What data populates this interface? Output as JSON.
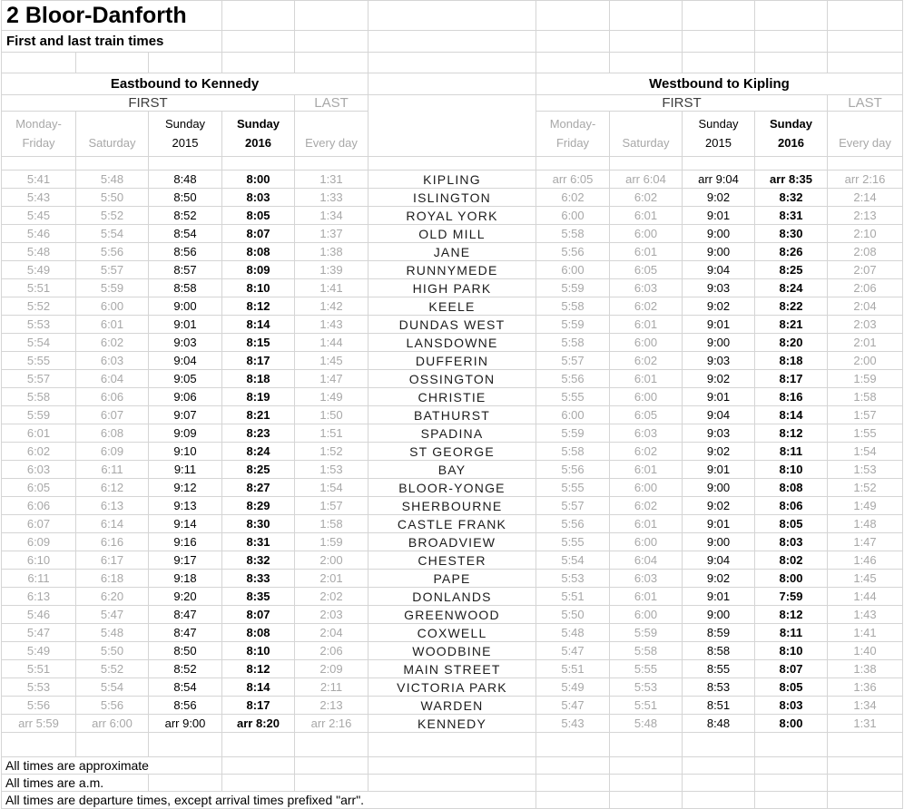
{
  "title": "2 Bloor-Danforth",
  "subtitle": "First and last train times",
  "sections": {
    "eastbound_label": "Eastbound to Kennedy",
    "westbound_label": "Westbound to Kipling",
    "first_label": "FIRST",
    "last_label": "LAST"
  },
  "day_headers": [
    {
      "lines": [
        "Monday-",
        "Friday"
      ],
      "style": "gray"
    },
    {
      "lines": [
        "Saturday"
      ],
      "style": "gray"
    },
    {
      "lines": [
        "Sunday",
        "2015"
      ],
      "style": "black"
    },
    {
      "lines": [
        "Sunday",
        "2016"
      ],
      "style": "bold"
    },
    {
      "lines": [
        "Every day"
      ],
      "style": "gray"
    }
  ],
  "colors": {
    "gray_text": "#a8a8a8",
    "black_text": "#000000",
    "gridline": "#d5d5d5"
  },
  "rows": [
    {
      "station": "KIPLING",
      "eb": [
        "5:41",
        "5:48",
        "8:48",
        "8:00",
        "1:31"
      ],
      "wb": [
        "arr 6:05",
        "arr 6:04",
        "arr 9:04",
        "arr 8:35",
        "arr 2:16"
      ]
    },
    {
      "station": "ISLINGTON",
      "eb": [
        "5:43",
        "5:50",
        "8:50",
        "8:03",
        "1:33"
      ],
      "wb": [
        "6:02",
        "6:02",
        "9:02",
        "8:32",
        "2:14"
      ]
    },
    {
      "station": "ROYAL YORK",
      "eb": [
        "5:45",
        "5:52",
        "8:52",
        "8:05",
        "1:34"
      ],
      "wb": [
        "6:00",
        "6:01",
        "9:01",
        "8:31",
        "2:13"
      ]
    },
    {
      "station": "OLD MILL",
      "eb": [
        "5:46",
        "5:54",
        "8:54",
        "8:07",
        "1:37"
      ],
      "wb": [
        "5:58",
        "6:00",
        "9:00",
        "8:30",
        "2:10"
      ]
    },
    {
      "station": "JANE",
      "eb": [
        "5:48",
        "5:56",
        "8:56",
        "8:08",
        "1:38"
      ],
      "wb": [
        "5:56",
        "6:01",
        "9:00",
        "8:26",
        "2:08"
      ]
    },
    {
      "station": "RUNNYMEDE",
      "eb": [
        "5:49",
        "5:57",
        "8:57",
        "8:09",
        "1:39"
      ],
      "wb": [
        "6:00",
        "6:05",
        "9:04",
        "8:25",
        "2:07"
      ]
    },
    {
      "station": "HIGH PARK",
      "eb": [
        "5:51",
        "5:59",
        "8:58",
        "8:10",
        "1:41"
      ],
      "wb": [
        "5:59",
        "6:03",
        "9:03",
        "8:24",
        "2:06"
      ]
    },
    {
      "station": "KEELE",
      "eb": [
        "5:52",
        "6:00",
        "9:00",
        "8:12",
        "1:42"
      ],
      "wb": [
        "5:58",
        "6:02",
        "9:02",
        "8:22",
        "2:04"
      ]
    },
    {
      "station": "DUNDAS WEST",
      "eb": [
        "5:53",
        "6:01",
        "9:01",
        "8:14",
        "1:43"
      ],
      "wb": [
        "5:59",
        "6:01",
        "9:01",
        "8:21",
        "2:03"
      ]
    },
    {
      "station": "LANSDOWNE",
      "eb": [
        "5:54",
        "6:02",
        "9:03",
        "8:15",
        "1:44"
      ],
      "wb": [
        "5:58",
        "6:00",
        "9:00",
        "8:20",
        "2:01"
      ]
    },
    {
      "station": "DUFFERIN",
      "eb": [
        "5:55",
        "6:03",
        "9:04",
        "8:17",
        "1:45"
      ],
      "wb": [
        "5:57",
        "6:02",
        "9:03",
        "8:18",
        "2:00"
      ]
    },
    {
      "station": "OSSINGTON",
      "eb": [
        "5:57",
        "6:04",
        "9:05",
        "8:18",
        "1:47"
      ],
      "wb": [
        "5:56",
        "6:01",
        "9:02",
        "8:17",
        "1:59"
      ]
    },
    {
      "station": "CHRISTIE",
      "eb": [
        "5:58",
        "6:06",
        "9:06",
        "8:19",
        "1:49"
      ],
      "wb": [
        "5:55",
        "6:00",
        "9:01",
        "8:16",
        "1:58"
      ]
    },
    {
      "station": "BATHURST",
      "eb": [
        "5:59",
        "6:07",
        "9:07",
        "8:21",
        "1:50"
      ],
      "wb": [
        "6:00",
        "6:05",
        "9:04",
        "8:14",
        "1:57"
      ]
    },
    {
      "station": "SPADINA",
      "eb": [
        "6:01",
        "6:08",
        "9:09",
        "8:23",
        "1:51"
      ],
      "wb": [
        "5:59",
        "6:03",
        "9:03",
        "8:12",
        "1:55"
      ]
    },
    {
      "station": "ST GEORGE",
      "eb": [
        "6:02",
        "6:09",
        "9:10",
        "8:24",
        "1:52"
      ],
      "wb": [
        "5:58",
        "6:02",
        "9:02",
        "8:11",
        "1:54"
      ]
    },
    {
      "station": "BAY",
      "eb": [
        "6:03",
        "6:11",
        "9:11",
        "8:25",
        "1:53"
      ],
      "wb": [
        "5:56",
        "6:01",
        "9:01",
        "8:10",
        "1:53"
      ]
    },
    {
      "station": "BLOOR-YONGE",
      "eb": [
        "6:05",
        "6:12",
        "9:12",
        "8:27",
        "1:54"
      ],
      "wb": [
        "5:55",
        "6:00",
        "9:00",
        "8:08",
        "1:52"
      ]
    },
    {
      "station": "SHERBOURNE",
      "eb": [
        "6:06",
        "6:13",
        "9:13",
        "8:29",
        "1:57"
      ],
      "wb": [
        "5:57",
        "6:02",
        "9:02",
        "8:06",
        "1:49"
      ]
    },
    {
      "station": "CASTLE FRANK",
      "eb": [
        "6:07",
        "6:14",
        "9:14",
        "8:30",
        "1:58"
      ],
      "wb": [
        "5:56",
        "6:01",
        "9:01",
        "8:05",
        "1:48"
      ]
    },
    {
      "station": "BROADVIEW",
      "eb": [
        "6:09",
        "6:16",
        "9:16",
        "8:31",
        "1:59"
      ],
      "wb": [
        "5:55",
        "6:00",
        "9:00",
        "8:03",
        "1:47"
      ]
    },
    {
      "station": "CHESTER",
      "eb": [
        "6:10",
        "6:17",
        "9:17",
        "8:32",
        "2:00"
      ],
      "wb": [
        "5:54",
        "6:04",
        "9:04",
        "8:02",
        "1:46"
      ]
    },
    {
      "station": "PAPE",
      "eb": [
        "6:11",
        "6:18",
        "9:18",
        "8:33",
        "2:01"
      ],
      "wb": [
        "5:53",
        "6:03",
        "9:02",
        "8:00",
        "1:45"
      ]
    },
    {
      "station": "DONLANDS",
      "eb": [
        "6:13",
        "6:20",
        "9:20",
        "8:35",
        "2:02"
      ],
      "wb": [
        "5:51",
        "6:01",
        "9:01",
        "7:59",
        "1:44"
      ]
    },
    {
      "station": "GREENWOOD",
      "eb": [
        "5:46",
        "5:47",
        "8:47",
        "8:07",
        "2:03"
      ],
      "wb": [
        "5:50",
        "6:00",
        "9:00",
        "8:12",
        "1:43"
      ]
    },
    {
      "station": "COXWELL",
      "eb": [
        "5:47",
        "5:48",
        "8:47",
        "8:08",
        "2:04"
      ],
      "wb": [
        "5:48",
        "5:59",
        "8:59",
        "8:11",
        "1:41"
      ]
    },
    {
      "station": "WOODBINE",
      "eb": [
        "5:49",
        "5:50",
        "8:50",
        "8:10",
        "2:06"
      ],
      "wb": [
        "5:47",
        "5:58",
        "8:58",
        "8:10",
        "1:40"
      ]
    },
    {
      "station": "MAIN STREET",
      "eb": [
        "5:51",
        "5:52",
        "8:52",
        "8:12",
        "2:09"
      ],
      "wb": [
        "5:51",
        "5:55",
        "8:55",
        "8:07",
        "1:38"
      ]
    },
    {
      "station": "VICTORIA PARK",
      "eb": [
        "5:53",
        "5:54",
        "8:54",
        "8:14",
        "2:11"
      ],
      "wb": [
        "5:49",
        "5:53",
        "8:53",
        "8:05",
        "1:36"
      ]
    },
    {
      "station": "WARDEN",
      "eb": [
        "5:56",
        "5:56",
        "8:56",
        "8:17",
        "2:13"
      ],
      "wb": [
        "5:47",
        "5:51",
        "8:51",
        "8:03",
        "1:34"
      ]
    },
    {
      "station": "KENNEDY",
      "eb": [
        "arr 5:59",
        "arr 6:00",
        "arr 9:00",
        "arr 8:20",
        "arr 2:16"
      ],
      "wb": [
        "5:43",
        "5:48",
        "8:48",
        "8:00",
        "1:31"
      ]
    }
  ],
  "footnotes": [
    "All times are approximate",
    "All times are a.m.",
    "All times are departure times, except arrival times prefixed \"arr\"."
  ]
}
